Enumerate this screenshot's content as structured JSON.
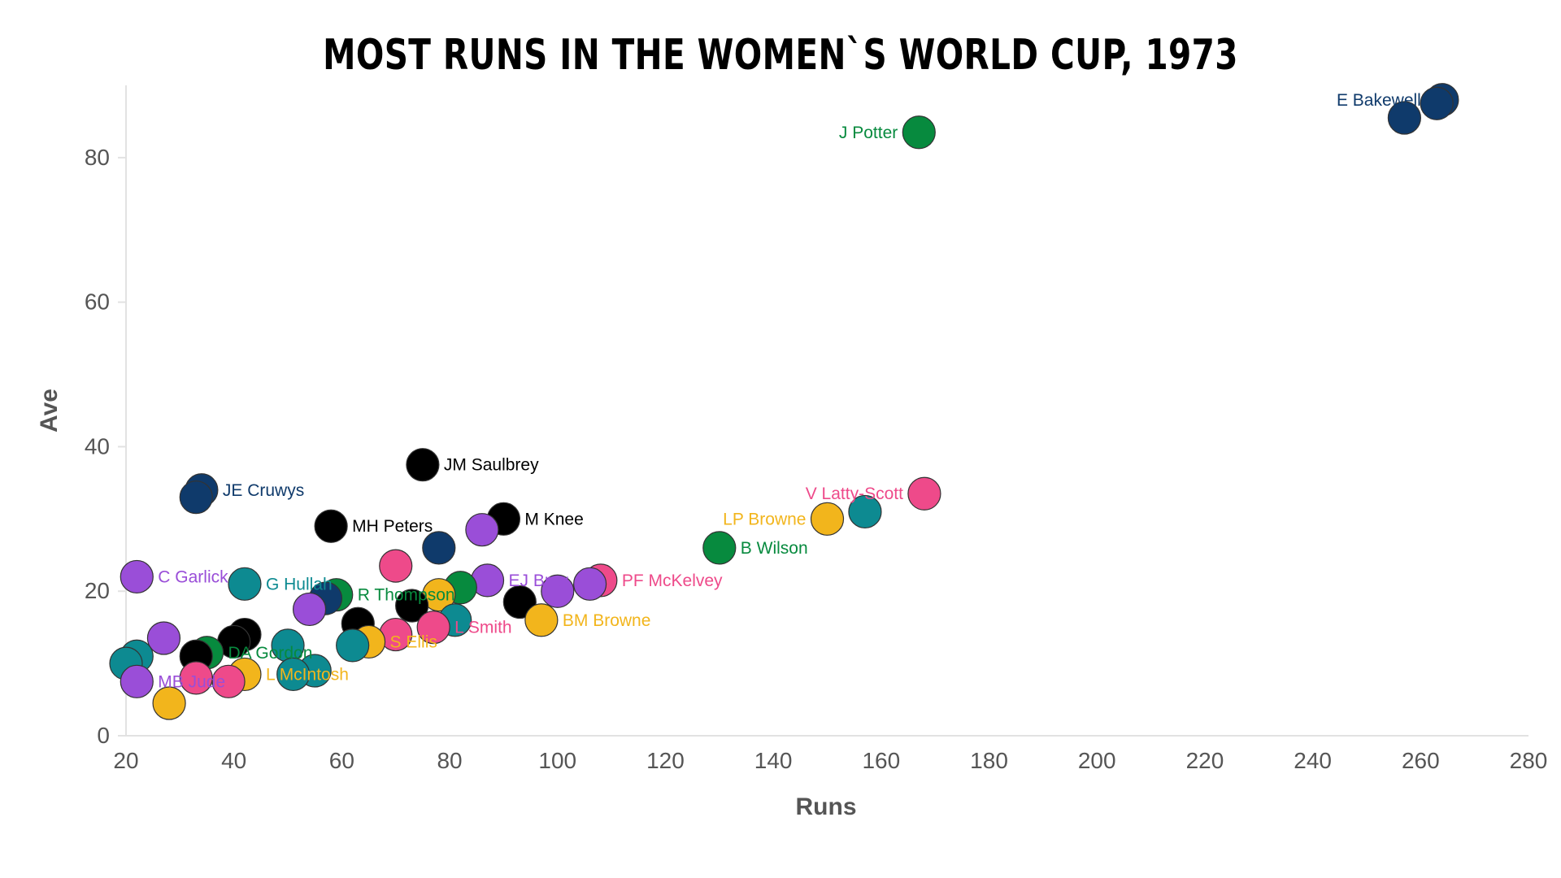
{
  "chart_data": {
    "type": "scatter",
    "title": "MOST RUNS IN THE WOMEN`S WORLD CUP, 1973",
    "xlabel": "Runs",
    "ylabel": "Ave",
    "xlim": [
      20,
      280
    ],
    "ylim": [
      0,
      90
    ],
    "xticks": [
      "20",
      "40",
      "60",
      "80",
      "100",
      "120",
      "140",
      "160",
      "180",
      "200",
      "220",
      "240",
      "260",
      "280"
    ],
    "yticks": [
      "0",
      "20",
      "40",
      "60",
      "80"
    ],
    "grid": false,
    "colors": {
      "navy": "#0f3a6b",
      "green": "#078a3e",
      "black": "#000000",
      "pink": "#ee4a8a",
      "purple": "#9a4ed8",
      "teal": "#0d8a91",
      "yellow": "#f2b51c"
    },
    "points": [
      {
        "label": "E Bakewell",
        "x": 264,
        "y": 88,
        "color": "navy"
      },
      {
        "label": "",
        "x": 263,
        "y": 87.5,
        "color": "navy"
      },
      {
        "label": "",
        "x": 257,
        "y": 85.5,
        "color": "navy"
      },
      {
        "label": "J Potter",
        "x": 167,
        "y": 83.5,
        "color": "green"
      },
      {
        "label": "JM Saulbrey",
        "x": 75,
        "y": 37.5,
        "color": "black"
      },
      {
        "label": "JE Cruwys",
        "x": 34,
        "y": 34,
        "color": "navy"
      },
      {
        "label": "",
        "x": 33,
        "y": 33,
        "color": "navy"
      },
      {
        "label": "V Latty-Scott",
        "x": 168,
        "y": 33.5,
        "color": "pink"
      },
      {
        "label": "",
        "x": 157,
        "y": 31,
        "color": "teal"
      },
      {
        "label": "LP Browne",
        "x": 150,
        "y": 30,
        "color": "yellow"
      },
      {
        "label": "M Knee",
        "x": 90,
        "y": 30,
        "color": "black"
      },
      {
        "label": "MH Peters",
        "x": 58,
        "y": 29,
        "color": "black"
      },
      {
        "label": "",
        "x": 86,
        "y": 28.5,
        "color": "purple"
      },
      {
        "label": "",
        "x": 78,
        "y": 26,
        "color": "navy"
      },
      {
        "label": "B Wilson",
        "x": 130,
        "y": 26,
        "color": "green"
      },
      {
        "label": "",
        "x": 70,
        "y": 23.5,
        "color": "pink"
      },
      {
        "label": "C Garlick",
        "x": 22,
        "y": 22,
        "color": "purple"
      },
      {
        "label": "PF McKelvey",
        "x": 108,
        "y": 21.5,
        "color": "pink"
      },
      {
        "label": "",
        "x": 106,
        "y": 21,
        "color": "purple"
      },
      {
        "label": "G Hullah",
        "x": 42,
        "y": 21,
        "color": "teal"
      },
      {
        "label": "EJ Bray",
        "x": 87,
        "y": 21.5,
        "color": "purple"
      },
      {
        "label": "",
        "x": 82,
        "y": 20.5,
        "color": "green"
      },
      {
        "label": "",
        "x": 100,
        "y": 20,
        "color": "purple"
      },
      {
        "label": "R Thompson",
        "x": 59,
        "y": 19.5,
        "color": "green"
      },
      {
        "label": "",
        "x": 78,
        "y": 19.5,
        "color": "yellow"
      },
      {
        "label": "",
        "x": 57,
        "y": 19,
        "color": "navy"
      },
      {
        "label": "",
        "x": 93,
        "y": 18.5,
        "color": "black"
      },
      {
        "label": "",
        "x": 73,
        "y": 18,
        "color": "black"
      },
      {
        "label": "",
        "x": 54,
        "y": 17.5,
        "color": "purple"
      },
      {
        "label": "BM Browne",
        "x": 97,
        "y": 16,
        "color": "yellow"
      },
      {
        "label": "",
        "x": 63,
        "y": 15.5,
        "color": "black"
      },
      {
        "label": "",
        "x": 81,
        "y": 16,
        "color": "teal"
      },
      {
        "label": "L Smith",
        "x": 77,
        "y": 15,
        "color": "pink"
      },
      {
        "label": "",
        "x": 42,
        "y": 14,
        "color": "black"
      },
      {
        "label": "",
        "x": 70,
        "y": 14,
        "color": "pink"
      },
      {
        "label": "",
        "x": 27,
        "y": 13.5,
        "color": "purple"
      },
      {
        "label": "",
        "x": 40,
        "y": 13,
        "color": "black"
      },
      {
        "label": "S Ellis",
        "x": 65,
        "y": 13,
        "color": "yellow"
      },
      {
        "label": "",
        "x": 50,
        "y": 12.5,
        "color": "teal"
      },
      {
        "label": "",
        "x": 62,
        "y": 12.5,
        "color": "teal"
      },
      {
        "label": "DA Gordon",
        "x": 35,
        "y": 11.5,
        "color": "green"
      },
      {
        "label": "",
        "x": 22,
        "y": 11,
        "color": "teal"
      },
      {
        "label": "",
        "x": 33,
        "y": 11,
        "color": "black"
      },
      {
        "label": "",
        "x": 20,
        "y": 10,
        "color": "teal"
      },
      {
        "label": "",
        "x": 55,
        "y": 9,
        "color": "teal"
      },
      {
        "label": "",
        "x": 51,
        "y": 8.5,
        "color": "teal"
      },
      {
        "label": "L McIntosh",
        "x": 42,
        "y": 8.5,
        "color": "yellow"
      },
      {
        "label": "",
        "x": 33,
        "y": 8,
        "color": "pink"
      },
      {
        "label": "",
        "x": 39,
        "y": 7.5,
        "color": "pink"
      },
      {
        "label": "MB Jude",
        "x": 22,
        "y": 7.5,
        "color": "purple"
      },
      {
        "label": "",
        "x": 28,
        "y": 4.5,
        "color": "yellow"
      }
    ]
  }
}
